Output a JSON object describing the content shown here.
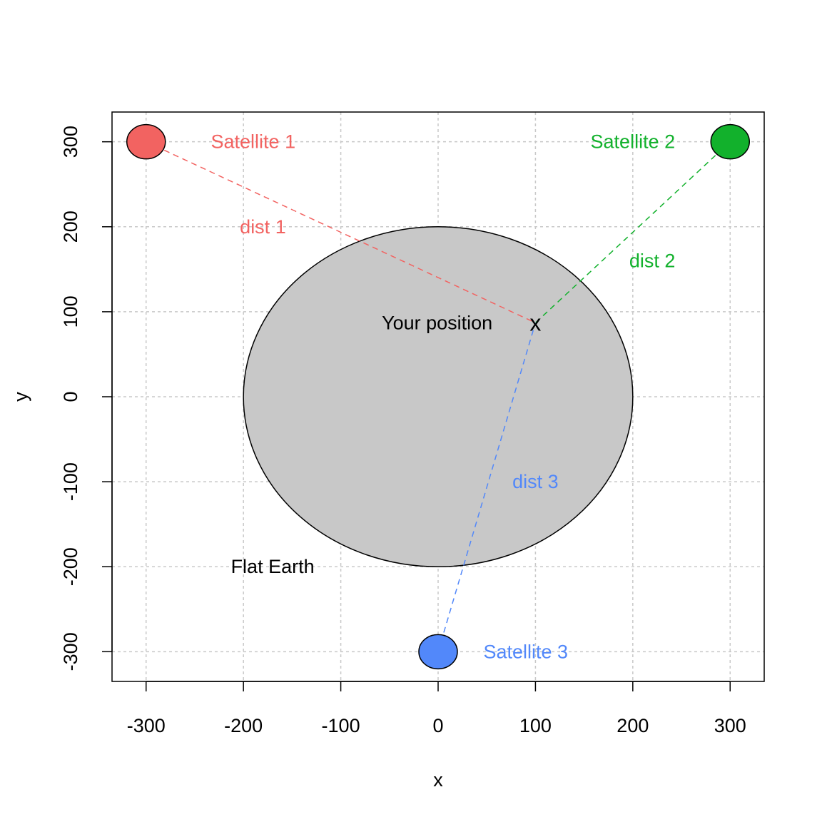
{
  "chart_data": {
    "type": "scatter",
    "title": "",
    "xlabel": "x",
    "ylabel": "y",
    "xlim": [
      -335,
      335
    ],
    "ylim": [
      -335,
      335
    ],
    "grid": true,
    "x_ticks": [
      -300,
      -200,
      -100,
      0,
      100,
      200,
      300
    ],
    "y_ticks": [
      -300,
      -200,
      -100,
      0,
      100,
      200,
      300
    ],
    "earth": {
      "label": "Flat Earth",
      "center": [
        0,
        0
      ],
      "radius": 200,
      "label_pos": [
        -170,
        -200
      ],
      "fill": "#c8c8c8"
    },
    "position": {
      "marker": "x",
      "label": "Your position",
      "point": [
        100,
        87
      ],
      "label_pos": [
        -1,
        87
      ]
    },
    "satellites": [
      {
        "label": "Satellite 1",
        "point": [
          -300,
          300
        ],
        "color": "#f26361",
        "label_pos": [
          -190,
          300
        ],
        "distance_label": "dist 1",
        "distance_label_pos": [
          -180,
          200
        ]
      },
      {
        "label": "Satellite 2",
        "point": [
          300,
          300
        ],
        "color": "#12b12c",
        "label_pos": [
          200,
          300
        ],
        "distance_label": "dist 2",
        "distance_label_pos": [
          220,
          160
        ]
      },
      {
        "label": "Satellite 3",
        "point": [
          0,
          -300
        ],
        "color": "#5288fa",
        "label_pos": [
          90,
          -300
        ],
        "distance_label": "dist 3",
        "distance_label_pos": [
          100,
          -100
        ]
      }
    ]
  }
}
